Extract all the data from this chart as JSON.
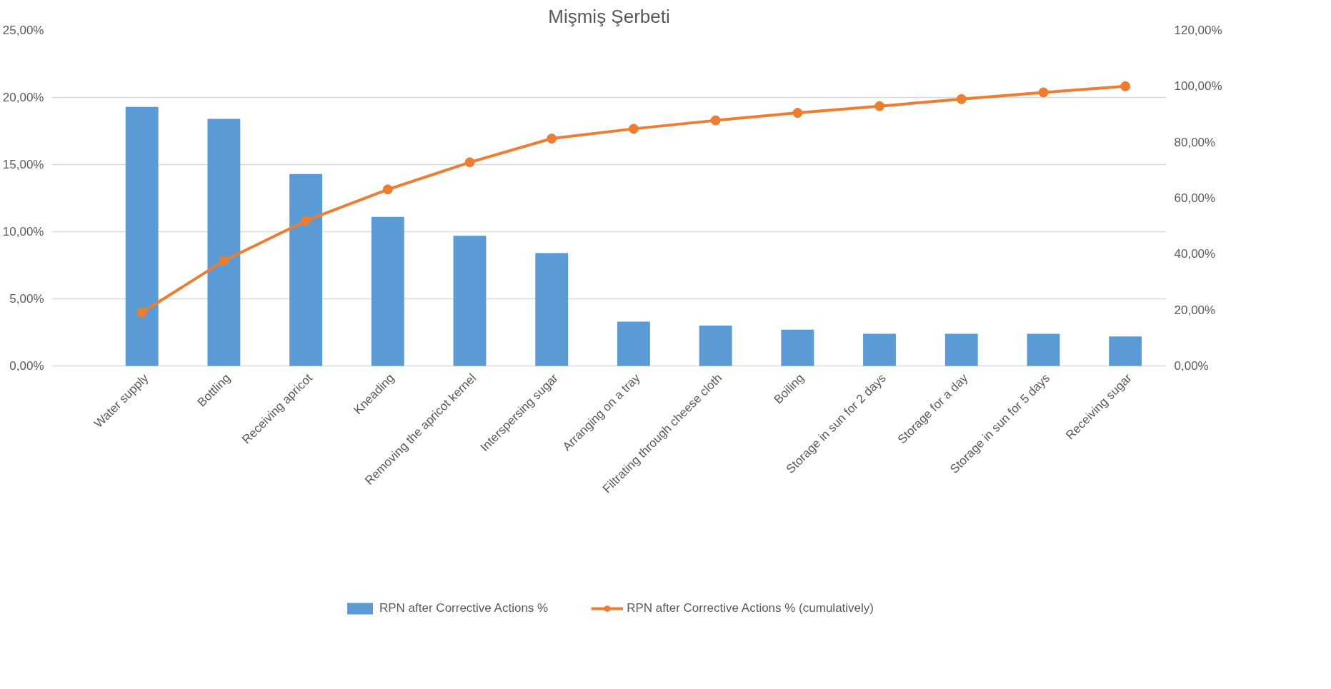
{
  "chart_data": {
    "type": "bar",
    "title": "Mişmiş Şerbeti",
    "categories": [
      "Water supply",
      "Bottling",
      "Receiving apricot",
      "Kneading",
      "Removing the apricot kernel",
      "Interspersing sugar",
      "Arranging on a tray",
      "Filtrating through cheese cloth",
      "Boiling",
      "Storage in sun for 2 days",
      "Storage for a day",
      "Storage in sun for 5 days",
      "Receiving sugar"
    ],
    "series": [
      {
        "name": "RPN after Corrective Actions %",
        "color": "#5b9bd5",
        "values": [
          19.3,
          18.4,
          14.3,
          11.1,
          9.7,
          8.4,
          3.3,
          3.0,
          2.7,
          2.4,
          2.4,
          2.4,
          2.2
        ]
      },
      {
        "name": "RPN after Corrective Actions % (cumulatively)",
        "type": "line",
        "axis": "y2",
        "marker": "circle",
        "color": "#ed7d31",
        "values": [
          19.1,
          37.6,
          51.9,
          63.1,
          72.8,
          81.3,
          84.8,
          87.8,
          90.5,
          92.9,
          95.4,
          97.8,
          100.0
        ]
      }
    ],
    "ylim": [
      0,
      25
    ],
    "yticks": [
      {
        "value": 0,
        "label": "0,00%"
      },
      {
        "value": 5,
        "label": "5,00%"
      },
      {
        "value": 10,
        "label": "10,00%"
      },
      {
        "value": 15,
        "label": "15,00%"
      },
      {
        "value": 20,
        "label": "20,00%"
      },
      {
        "value": 25,
        "label": "25,00%"
      }
    ],
    "y2lim": [
      0,
      120
    ],
    "y2ticks": [
      {
        "value": 0,
        "label": "0,00%"
      },
      {
        "value": 20,
        "label": "20,00%"
      },
      {
        "value": 40,
        "label": "40,00%"
      },
      {
        "value": 60,
        "label": "60,00%"
      },
      {
        "value": 80,
        "label": "80,00%"
      },
      {
        "value": 100,
        "label": "100,00%"
      },
      {
        "value": 120,
        "label": "120,00%"
      }
    ],
    "grid": "y",
    "legend": "bottom"
  }
}
